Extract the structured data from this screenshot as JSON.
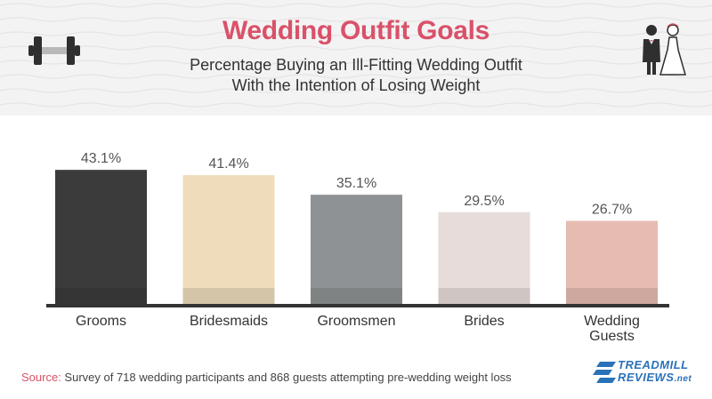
{
  "header": {
    "title": "Wedding Outfit Goals",
    "subtitle_line1": "Percentage Buying an Ill-Fitting Wedding Outfit",
    "subtitle_line2": "With the Intention of Losing Weight",
    "left_icon": "dumbbell-icon",
    "right_icon": "bride-and-groom-icon"
  },
  "chart_data": {
    "type": "bar",
    "categories": [
      "Grooms",
      "Bridesmaids",
      "Groomsmen",
      "Brides",
      "Wedding Guests"
    ],
    "category_lines": [
      [
        "Grooms"
      ],
      [
        "Bridesmaids"
      ],
      [
        "Groomsmen"
      ],
      [
        "Brides"
      ],
      [
        "Wedding",
        "Guests"
      ]
    ],
    "values": [
      43.1,
      41.4,
      35.1,
      29.5,
      26.7
    ],
    "value_labels": [
      "43.1%",
      "41.4%",
      "35.1%",
      "29.5%",
      "26.7%"
    ],
    "colors": [
      "#3b3b3b",
      "#eedcbb",
      "#8f9294",
      "#e7dcd9",
      "#e6bbb2"
    ],
    "ylim": [
      0,
      50
    ],
    "grid": false,
    "legend": "none"
  },
  "footer": {
    "source_label": "Source:",
    "source_text": " Survey of 718 wedding participants and 868 guests attempting pre-wedding weight loss",
    "logo_line1": "TREADMILL",
    "logo_line2": "REVIEWS",
    "logo_suffix": ".net"
  }
}
